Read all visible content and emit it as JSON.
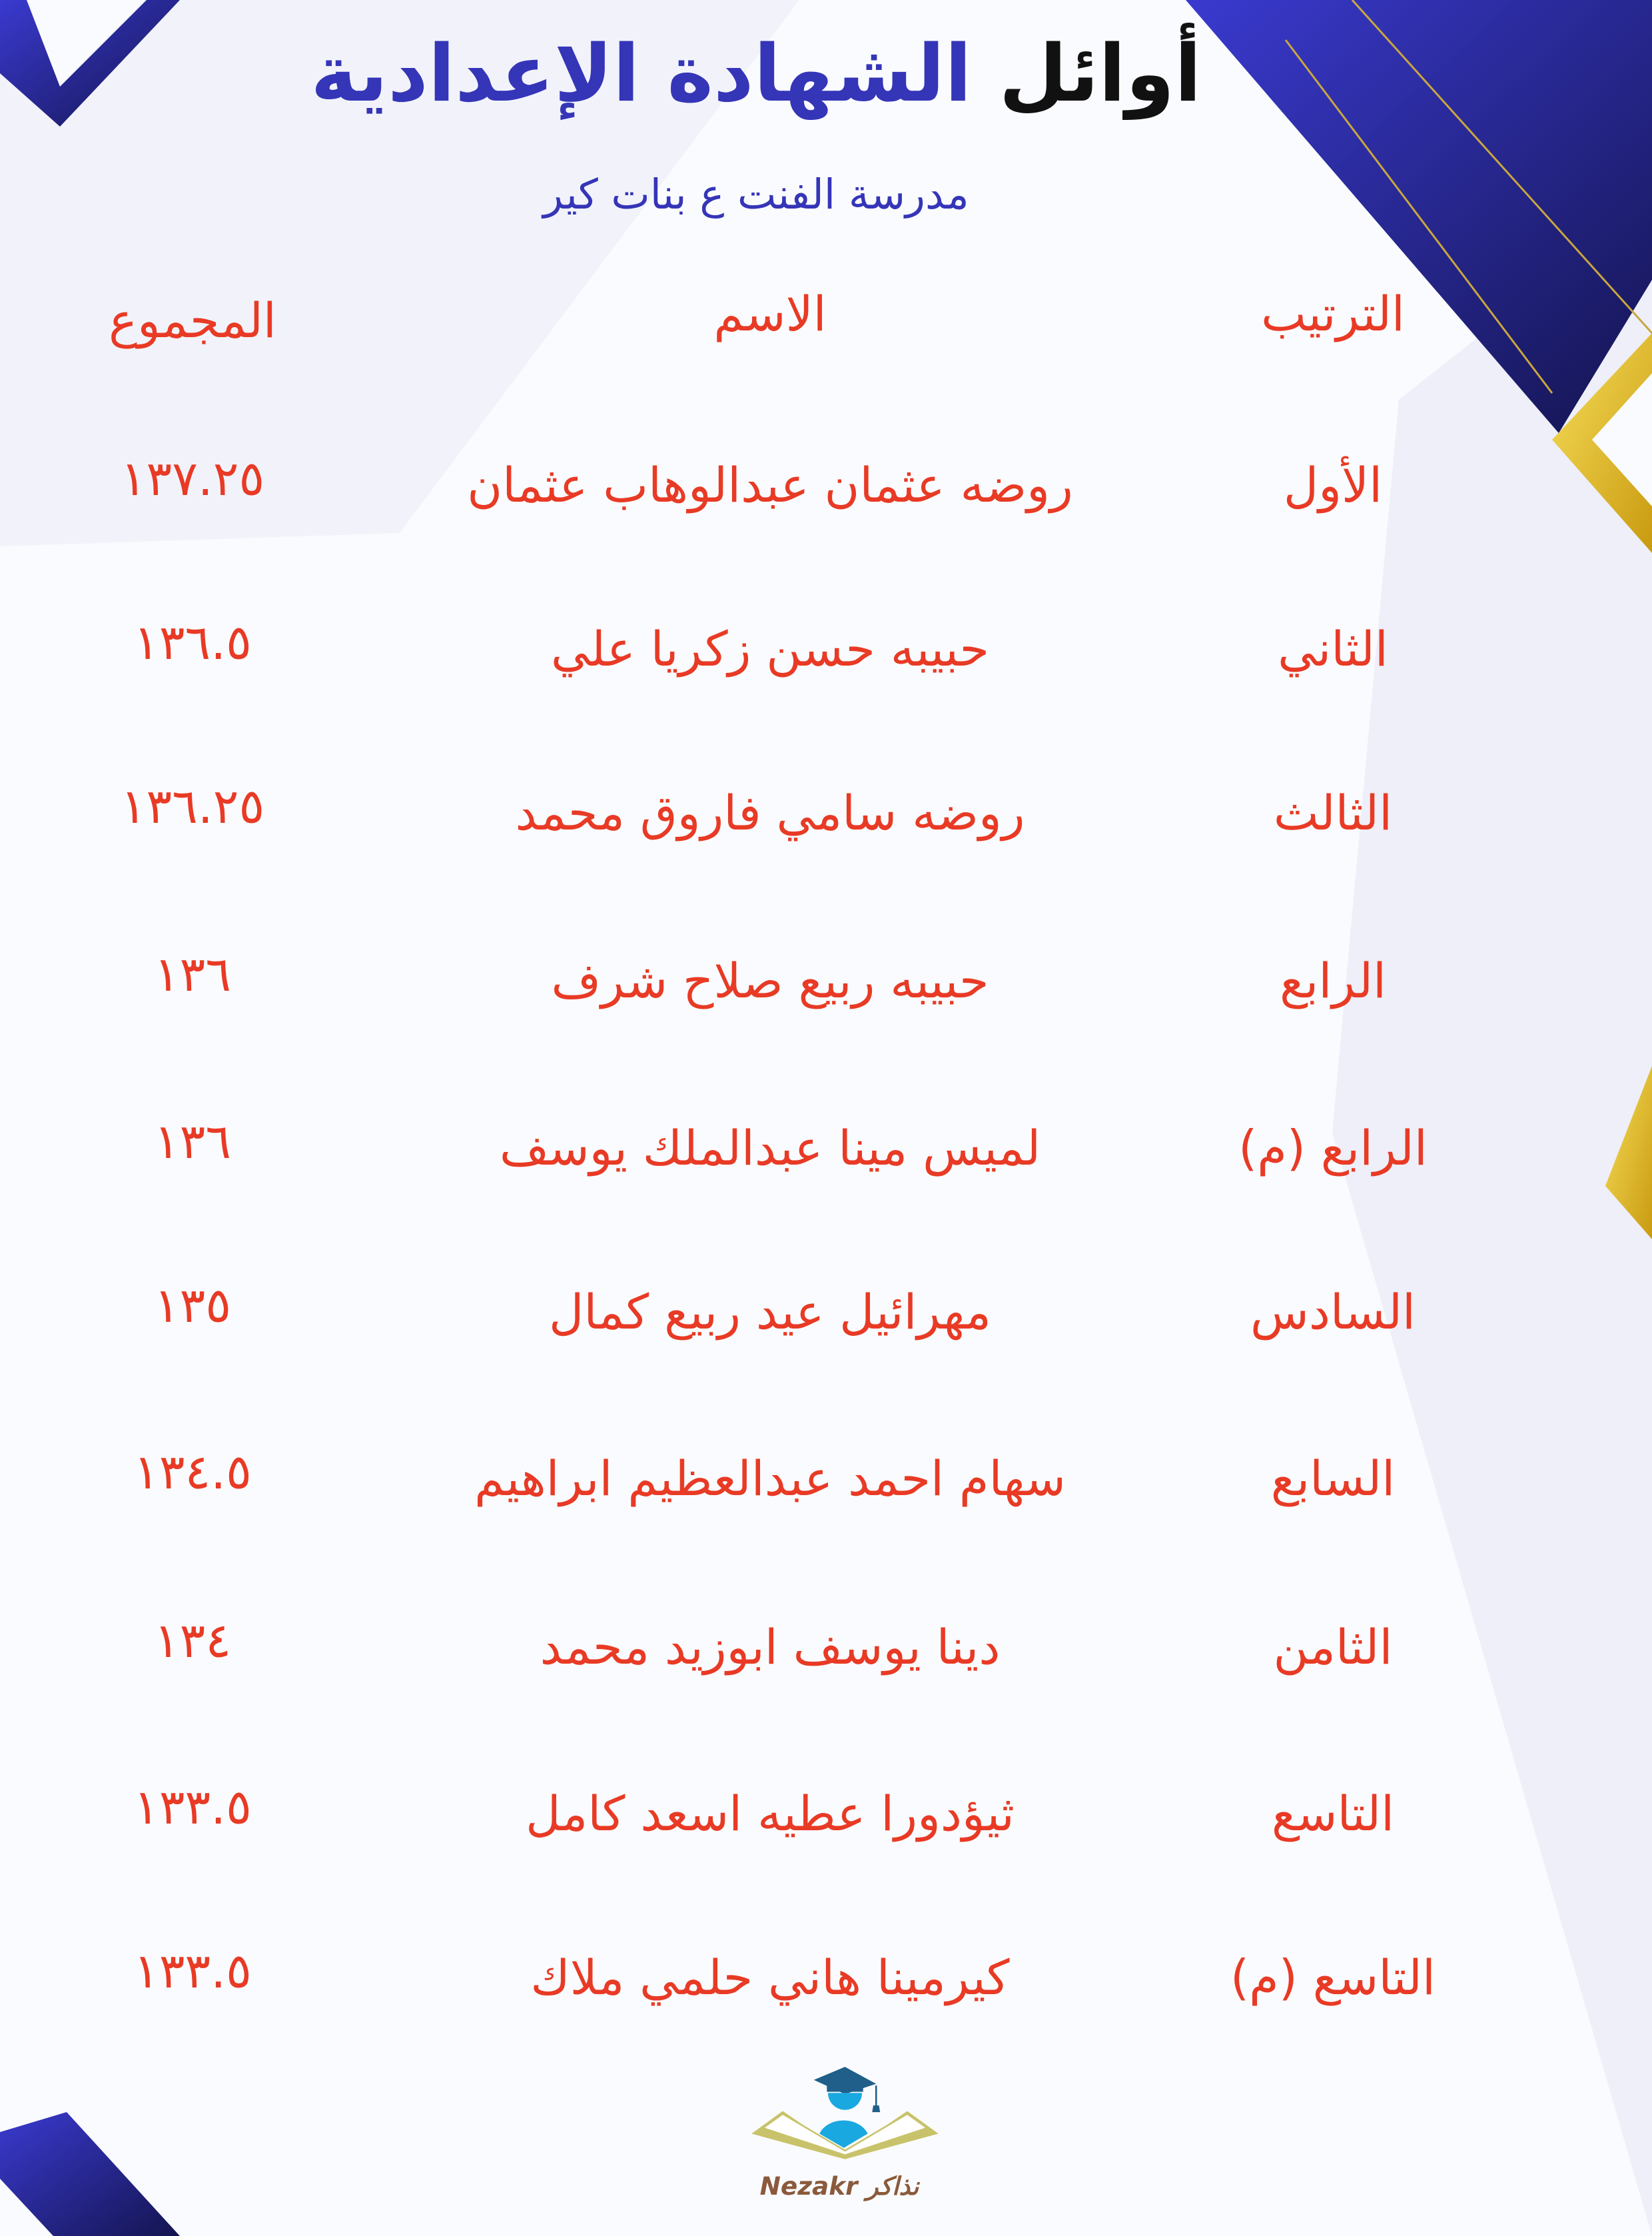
{
  "title": {
    "part1": "أوائل",
    "part2": "الشهادة الإعدادية"
  },
  "subtitle": "مدرسة الفنت ع بنات كير",
  "table": {
    "headers": {
      "rank": "الترتيب",
      "name": "الاسم",
      "total": "المجموع"
    },
    "rows": [
      {
        "rank": "الأول",
        "name": "روضه عثمان عبدالوهاب عثمان",
        "total": "١٣٧.٢٥"
      },
      {
        "rank": "الثاني",
        "name": "حبيبه حسن زكريا علي",
        "total": "١٣٦.٥"
      },
      {
        "rank": "الثالث",
        "name": "روضه سامي فاروق محمد",
        "total": "١٣٦.٢٥"
      },
      {
        "rank": "الرابع",
        "name": "حبيبه ربيع صلاح شرف",
        "total": "١٣٦"
      },
      {
        "rank": "الرابع (م)",
        "name": "لميس مينا عبدالملك يوسف",
        "total": "١٣٦"
      },
      {
        "rank": "السادس",
        "name": "مهرائيل عيد ربيع كمال",
        "total": "١٣٥"
      },
      {
        "rank": "السابع",
        "name": "سهام احمد عبدالعظيم ابراهيم",
        "total": "١٣٤.٥"
      },
      {
        "rank": "الثامن",
        "name": "دينا يوسف ابوزيد محمد",
        "total": "١٣٤"
      },
      {
        "rank": "التاسع",
        "name": "ثيؤدورا عطيه اسعد كامل",
        "total": "١٣٣.٥"
      },
      {
        "rank": "التاسع (م)",
        "name": "كيرمينا هاني حلمي ملاك",
        "total": "١٣٣.٥"
      }
    ]
  },
  "logo": {
    "text": "Nezakr نذاكر",
    "icon": "graduate-book-logo"
  },
  "colors": {
    "accent_blue": "#3535b8",
    "text_red": "#e83a25",
    "gold": "#e8c12c",
    "navy": "#1a1a6e"
  }
}
